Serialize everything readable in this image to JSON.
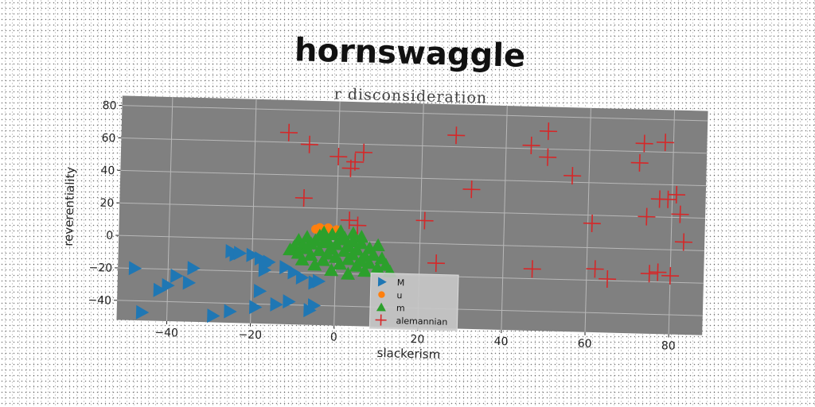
{
  "chart_data": {
    "type": "scatter",
    "title": "hornswaggle",
    "subtitle": "r disconsideration",
    "xlabel": "slackerism",
    "ylabel": "reverentiality",
    "xlim": [
      -52,
      88
    ],
    "ylim": [
      -52,
      86
    ],
    "xticks": [
      -40,
      -20,
      0,
      20,
      40,
      60,
      80
    ],
    "yticks": [
      -40,
      -20,
      0,
      20,
      40,
      60,
      80
    ],
    "grid": true,
    "legend_position": "lower-center",
    "background": "#808080",
    "series": [
      {
        "name": "M",
        "marker": "triangle-right",
        "color": "#1f77b4",
        "points": [
          [
            -48,
            -20
          ],
          [
            -46,
            -47
          ],
          [
            -42,
            -33
          ],
          [
            -40,
            -30
          ],
          [
            -38,
            -24
          ],
          [
            -35,
            -28
          ],
          [
            -34,
            -19
          ],
          [
            -29,
            -48
          ],
          [
            -25,
            -45
          ],
          [
            -25,
            -8
          ],
          [
            -24,
            -10
          ],
          [
            -23,
            -9
          ],
          [
            -20,
            -10
          ],
          [
            -19,
            -42
          ],
          [
            -18,
            -32
          ],
          [
            -18,
            -12
          ],
          [
            -17,
            -16
          ],
          [
            -17,
            -19
          ],
          [
            -16,
            -14
          ],
          [
            -14,
            -40
          ],
          [
            -12,
            -17
          ],
          [
            -11,
            -38
          ],
          [
            -10,
            -20
          ],
          [
            -8,
            -23
          ],
          [
            -6,
            -43
          ],
          [
            -5,
            -40
          ],
          [
            -5,
            -26
          ],
          [
            -4,
            -25
          ]
        ]
      },
      {
        "name": "u",
        "marker": "circle",
        "color": "#ff7f0e",
        "points": [
          [
            -5,
            7
          ],
          [
            -4,
            8
          ],
          [
            -3,
            7
          ],
          [
            -2,
            8
          ],
          [
            -1,
            6
          ],
          [
            0,
            7
          ]
        ]
      },
      {
        "name": "m",
        "marker": "triangle-up",
        "color": "#2ca02c",
        "points": [
          [
            -11,
            -6
          ],
          [
            -10,
            -4
          ],
          [
            -9,
            -8
          ],
          [
            -9,
            0
          ],
          [
            -8,
            -3
          ],
          [
            -8,
            -12
          ],
          [
            -7,
            -5
          ],
          [
            -7,
            2
          ],
          [
            -6,
            -9
          ],
          [
            -6,
            -2
          ],
          [
            -5,
            -15
          ],
          [
            -5,
            0
          ],
          [
            -4,
            -6
          ],
          [
            -4,
            3
          ],
          [
            -3,
            -12
          ],
          [
            -3,
            -1
          ],
          [
            -3,
            5
          ],
          [
            -2,
            -8
          ],
          [
            -2,
            0
          ],
          [
            -1,
            -18
          ],
          [
            -1,
            -5
          ],
          [
            -1,
            4
          ],
          [
            0,
            -10
          ],
          [
            0,
            -2
          ],
          [
            1,
            -14
          ],
          [
            1,
            1
          ],
          [
            1,
            6
          ],
          [
            2,
            -6
          ],
          [
            2,
            2
          ],
          [
            3,
            -20
          ],
          [
            3,
            -11
          ],
          [
            3,
            -3
          ],
          [
            4,
            -8
          ],
          [
            4,
            0
          ],
          [
            4,
            5
          ],
          [
            5,
            -15
          ],
          [
            5,
            -5
          ],
          [
            6,
            -12
          ],
          [
            6,
            -1
          ],
          [
            6,
            3
          ],
          [
            7,
            -9
          ],
          [
            7,
            -18
          ],
          [
            8,
            -4
          ],
          [
            8,
            -13
          ],
          [
            9,
            -8
          ],
          [
            10,
            -16
          ],
          [
            10,
            -2
          ],
          [
            11,
            -10
          ],
          [
            12,
            -14
          ],
          [
            13,
            -18
          ]
        ]
      },
      {
        "name": "alemannian",
        "marker": "plus",
        "color": "#d62728",
        "points": [
          [
            -12,
            66
          ],
          [
            -7,
            59
          ],
          [
            -8,
            26
          ],
          [
            0,
            52
          ],
          [
            3,
            45
          ],
          [
            4,
            49
          ],
          [
            6,
            55
          ],
          [
            3,
            13
          ],
          [
            5,
            10
          ],
          [
            21,
            14
          ],
          [
            24,
            -12
          ],
          [
            28,
            67
          ],
          [
            32,
            34
          ],
          [
            46,
            62
          ],
          [
            47,
            -14
          ],
          [
            50,
            71
          ],
          [
            50,
            55
          ],
          [
            56,
            44
          ],
          [
            61,
            15
          ],
          [
            62,
            -13
          ],
          [
            65,
            -19
          ],
          [
            72,
            53
          ],
          [
            73,
            65
          ],
          [
            74,
            20
          ],
          [
            75,
            -15
          ],
          [
            77,
            -14
          ],
          [
            77,
            31
          ],
          [
            78,
            66
          ],
          [
            79,
            31
          ],
          [
            80,
            -16
          ],
          [
            81,
            34
          ],
          [
            82,
            22
          ],
          [
            83,
            5
          ]
        ]
      }
    ]
  }
}
